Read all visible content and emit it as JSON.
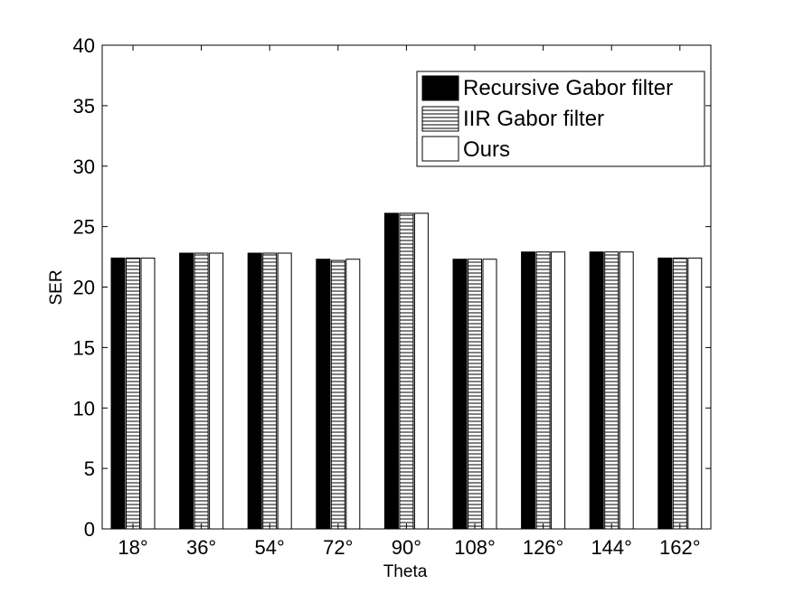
{
  "chart_data": {
    "type": "bar",
    "title": "",
    "xlabel": "Theta",
    "ylabel": "SER",
    "ylim": [
      0,
      40
    ],
    "yticks": [
      0,
      5,
      10,
      15,
      20,
      25,
      30,
      35,
      40
    ],
    "grid": false,
    "legend_position": "top-right",
    "categories": [
      "18°",
      "36°",
      "54°",
      "72°",
      "90°",
      "108°",
      "126°",
      "144°",
      "162°"
    ],
    "series": [
      {
        "name": "Recursive Gabor filter",
        "fill": "solid-black",
        "color": "#000000",
        "values": [
          22.4,
          22.8,
          22.8,
          22.3,
          26.1,
          22.3,
          22.9,
          22.9,
          22.4
        ]
      },
      {
        "name": "IIR Gabor filter",
        "fill": "horizontal-hatch",
        "color": "#000000",
        "values": [
          22.4,
          22.8,
          22.8,
          22.2,
          26.1,
          22.3,
          22.9,
          22.9,
          22.4
        ]
      },
      {
        "name": "Ours",
        "fill": "white",
        "color": "#ffffff",
        "values": [
          22.4,
          22.8,
          22.8,
          22.3,
          26.1,
          22.3,
          22.9,
          22.9,
          22.4
        ]
      }
    ]
  }
}
